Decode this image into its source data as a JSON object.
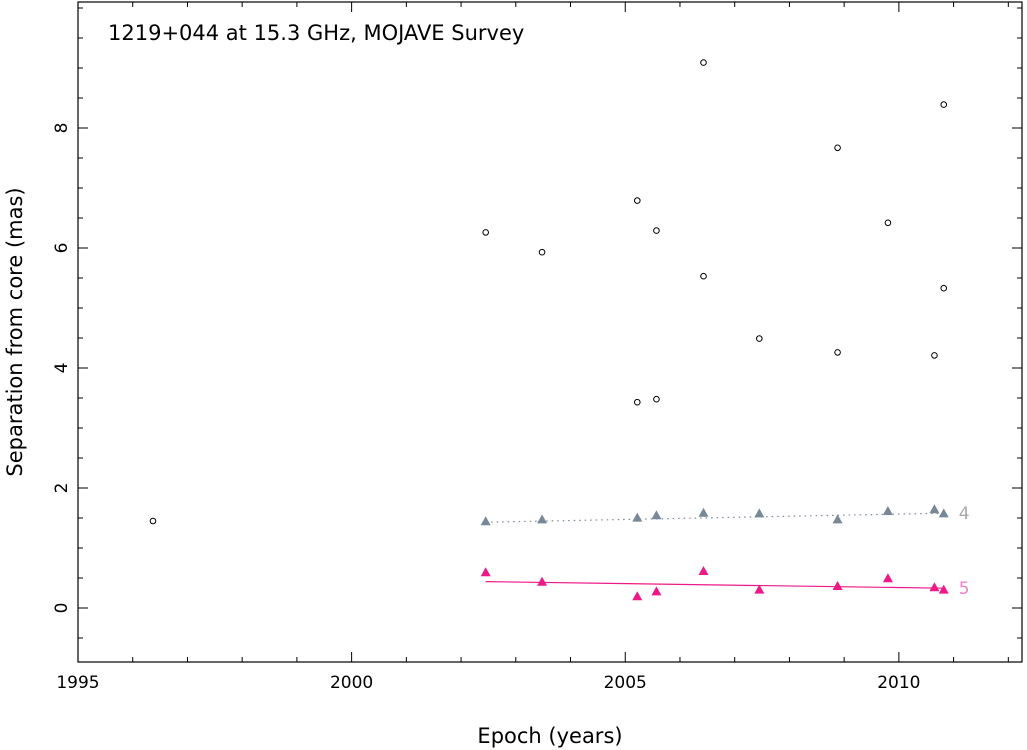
{
  "chart_data": {
    "type": "scatter",
    "title": "1219+044 at 15.3 GHz, MOJAVE Survey",
    "xlabel": "Epoch (years)",
    "ylabel": "Separation from core (mas)",
    "xlim": [
      1995,
      2012.25
    ],
    "ylim": [
      -0.9,
      10.1
    ],
    "x_ticks": [
      1995,
      2000,
      2005,
      2010
    ],
    "y_ticks": [
      0,
      2,
      4,
      6,
      8
    ],
    "grid": false,
    "legend": "none",
    "series": [
      {
        "marker": "open-circle",
        "color": "#000000",
        "points": [
          [
            1996.37,
            1.45
          ],
          [
            2002.45,
            6.26
          ],
          [
            2003.48,
            5.93
          ],
          [
            2005.22,
            6.79
          ],
          [
            2005.22,
            3.43
          ],
          [
            2005.57,
            6.29
          ],
          [
            2005.57,
            3.48
          ],
          [
            2006.43,
            9.09
          ],
          [
            2006.43,
            5.53
          ],
          [
            2007.45,
            4.49
          ],
          [
            2008.88,
            7.67
          ],
          [
            2008.88,
            4.26
          ],
          [
            2009.8,
            6.42
          ],
          [
            2010.65,
            4.21
          ],
          [
            2010.82,
            8.39
          ],
          [
            2010.82,
            5.33
          ]
        ]
      },
      {
        "name": "4",
        "marker": "filled-triangle",
        "color": "#778899",
        "label_color": "#aaaaaa",
        "line_style": "dotted",
        "points": [
          [
            2002.45,
            1.44
          ],
          [
            2003.48,
            1.47
          ],
          [
            2005.22,
            1.5
          ],
          [
            2005.57,
            1.54
          ],
          [
            2006.43,
            1.58
          ],
          [
            2007.45,
            1.57
          ],
          [
            2008.88,
            1.47
          ],
          [
            2009.8,
            1.61
          ],
          [
            2010.65,
            1.64
          ],
          [
            2010.82,
            1.57
          ]
        ],
        "fit": [
          [
            2002.45,
            1.43
          ],
          [
            2010.82,
            1.58
          ]
        ]
      },
      {
        "name": "5",
        "marker": "filled-triangle",
        "color": "#ee1988",
        "label_color": "#ee82c8",
        "line_style": "solid",
        "points": [
          [
            2002.45,
            0.59
          ],
          [
            2003.48,
            0.43
          ],
          [
            2005.22,
            0.19
          ],
          [
            2005.57,
            0.27
          ],
          [
            2006.43,
            0.61
          ],
          [
            2007.45,
            0.3
          ],
          [
            2008.88,
            0.36
          ],
          [
            2009.8,
            0.49
          ],
          [
            2010.65,
            0.34
          ],
          [
            2010.82,
            0.3
          ]
        ],
        "fit": [
          [
            2002.45,
            0.44
          ],
          [
            2010.82,
            0.33
          ]
        ]
      }
    ]
  }
}
